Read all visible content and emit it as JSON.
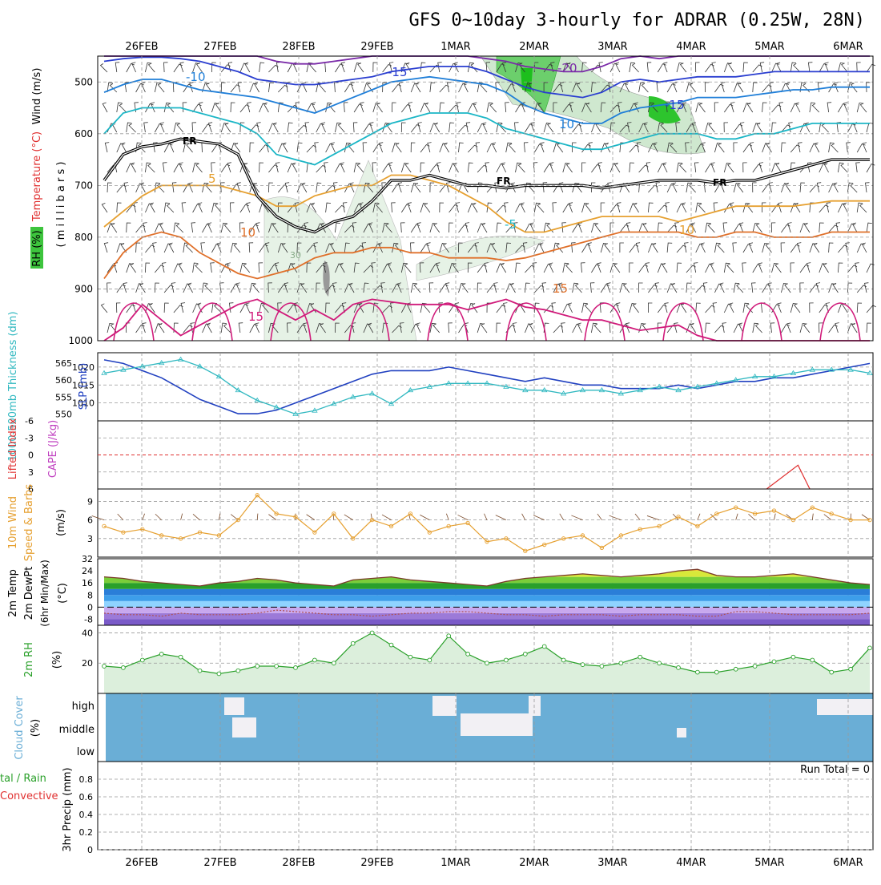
{
  "title": "GFS 0~10day 3-hourly for ADRAR (0.25W, 28N)",
  "dates": [
    "26FEB",
    "27FEB",
    "28FEB",
    "29FEB",
    "1MAR",
    "2MAR",
    "3MAR",
    "4MAR",
    "5MAR",
    "6MAR"
  ],
  "colors": {
    "temp": [
      "#d01a7a",
      "#e0702a",
      "#e6a030",
      "#22b88a",
      "#1bb6c6",
      "#1e7ed8",
      "#2a3ed0",
      "#7a2aa8"
    ],
    "slp": "#2040c0",
    "thickness": "#30b8c0",
    "wind10m": "#e6a030",
    "rh": "#2aa02a",
    "rh_fill": "#dcefdc",
    "cloud_bg": "#6aaed6",
    "cloud_gap": "#f2f0f4",
    "lifted": "#e03030",
    "cape": "#c040c0"
  },
  "chart_data": [
    {
      "type": "contour",
      "panel": "upper-air",
      "ylabel_parts": [
        "RH (%)",
        "Temperature (°C)",
        "Wind (m/s)"
      ],
      "ylabel_units": "( m i l l i b a r s )",
      "yticks": [
        500,
        600,
        700,
        800,
        900,
        1000
      ],
      "ylim": [
        450,
        1000
      ],
      "freezing_label": "FR",
      "freezing_level_mb": [
        690,
        640,
        625,
        620,
        610,
        615,
        620,
        640,
        720,
        760,
        780,
        790,
        770,
        760,
        730,
        690,
        690,
        680,
        690,
        700,
        700,
        705,
        700,
        700,
        700,
        700,
        705,
        700,
        695,
        690,
        690,
        690,
        695,
        690,
        690,
        680,
        670,
        660,
        650,
        650,
        650
      ],
      "rh_label": "30",
      "temperature_labels": [
        "-20",
        "-15",
        "-10",
        "-5",
        "5",
        "10",
        "15"
      ],
      "isotherms": [
        {
          "name": "15",
          "label": "15",
          "mb": [
            1000,
            975,
            930,
            960,
            990,
            970,
            950,
            930,
            920,
            940,
            960,
            940,
            960,
            930,
            920,
            925,
            930,
            930,
            930,
            940,
            930,
            920,
            935,
            940,
            950,
            960,
            960,
            970,
            980,
            975,
            970,
            990,
            1000,
            1000,
            1000,
            1000,
            1000,
            1000,
            1000,
            1000,
            1000
          ]
        },
        {
          "name": "10",
          "label": "10",
          "mb": [
            880,
            830,
            800,
            790,
            800,
            830,
            850,
            870,
            880,
            870,
            860,
            840,
            830,
            830,
            820,
            820,
            830,
            830,
            840,
            840,
            840,
            845,
            840,
            830,
            820,
            810,
            800,
            790,
            790,
            790,
            790,
            800,
            800,
            790,
            790,
            800,
            800,
            800,
            790,
            790,
            790
          ]
        },
        {
          "name": "5",
          "label": "5",
          "mb": [
            780,
            750,
            720,
            700,
            700,
            700,
            700,
            710,
            720,
            740,
            740,
            720,
            710,
            700,
            700,
            680,
            680,
            690,
            700,
            720,
            740,
            770,
            790,
            790,
            780,
            770,
            760,
            760,
            760,
            760,
            770,
            760,
            750,
            740,
            740,
            740,
            740,
            735,
            730,
            730,
            730
          ]
        },
        {
          "name": "0",
          "label": "",
          "mb": [
            690,
            640,
            625,
            620,
            610,
            615,
            620,
            640,
            720,
            760,
            780,
            790,
            770,
            760,
            730,
            690,
            690,
            680,
            690,
            700,
            700,
            705,
            700,
            700,
            700,
            700,
            705,
            700,
            695,
            690,
            690,
            690,
            695,
            690,
            690,
            680,
            670,
            660,
            650,
            650,
            650
          ]
        },
        {
          "name": "-5",
          "label": "-5",
          "mb": [
            600,
            560,
            550,
            550,
            550,
            560,
            570,
            580,
            600,
            640,
            650,
            660,
            640,
            620,
            600,
            580,
            570,
            560,
            560,
            560,
            570,
            590,
            600,
            610,
            620,
            630,
            630,
            620,
            610,
            600,
            600,
            600,
            610,
            610,
            600,
            600,
            590,
            580,
            580,
            580,
            580
          ]
        },
        {
          "name": "-10",
          "label": "-10",
          "mb": [
            520,
            505,
            495,
            495,
            505,
            515,
            520,
            525,
            530,
            540,
            550,
            560,
            545,
            530,
            515,
            500,
            495,
            490,
            495,
            500,
            505,
            520,
            545,
            560,
            570,
            580,
            580,
            560,
            550,
            545,
            540,
            530,
            530,
            530,
            525,
            520,
            515,
            515,
            510,
            510,
            510
          ]
        },
        {
          "name": "-15",
          "label": "-15",
          "mb": [
            460,
            455,
            452,
            452,
            455,
            460,
            470,
            480,
            495,
            500,
            505,
            505,
            500,
            495,
            490,
            480,
            475,
            470,
            470,
            470,
            480,
            495,
            510,
            520,
            525,
            530,
            520,
            500,
            495,
            500,
            495,
            490,
            490,
            490,
            485,
            480,
            480,
            480,
            480,
            480,
            480
          ]
        },
        {
          "name": "-20",
          "label": "-20",
          "mb": [
            450,
            450,
            450,
            450,
            450,
            450,
            450,
            450,
            450,
            460,
            465,
            465,
            460,
            455,
            450,
            450,
            450,
            450,
            450,
            450,
            455,
            460,
            470,
            475,
            480,
            480,
            470,
            455,
            450,
            455,
            450,
            450,
            450,
            450,
            450,
            450,
            450,
            450,
            450,
            450,
            450
          ]
        }
      ]
    },
    {
      "type": "line",
      "panel": "slp-thickness",
      "ylabel_left": "1000-500mb Thickness (dm)",
      "ylabel_right": "SLP (mb)",
      "yticks_thickness": [
        550,
        555,
        560,
        565
      ],
      "yticks_slp": [
        1010,
        1015,
        1020
      ],
      "series": [
        {
          "name": "SLP (mb)",
          "axis": "slp",
          "values": [
            1022,
            1021,
            1019,
            1017,
            1014,
            1011,
            1009,
            1007,
            1007,
            1008,
            1010,
            1012,
            1014,
            1016,
            1018,
            1019,
            1019,
            1019,
            1020,
            1019,
            1018,
            1017,
            1016,
            1017,
            1016,
            1015,
            1015,
            1014,
            1014,
            1014,
            1015,
            1014,
            1015,
            1016,
            1016,
            1017,
            1017,
            1018,
            1019,
            1020,
            1021
          ]
        },
        {
          "name": "1000-500mb Thickness (dm)",
          "axis": "thickness",
          "values": [
            562,
            563,
            564,
            565,
            566,
            564,
            561,
            557,
            554,
            552,
            550,
            551,
            553,
            555,
            556,
            553,
            557,
            558,
            559,
            559,
            559,
            558,
            557,
            557,
            556,
            557,
            557,
            556,
            557,
            558,
            557,
            558,
            559,
            560,
            561,
            561,
            562,
            563,
            563,
            563,
            562
          ]
        }
      ]
    },
    {
      "type": "line",
      "panel": "stability",
      "ylabel_left": "Lifted Index",
      "ylabel_right": "CAPE (J/kg)",
      "yticks": [
        "-6",
        "-3",
        "0",
        "3",
        "6"
      ],
      "ylim": [
        -6,
        6
      ],
      "zero_line": true,
      "series": [
        {
          "name": "Lifted Index",
          "x_days": [
            7.9,
            8.3,
            8.45
          ],
          "values": [
            6,
            1.8,
            6
          ]
        }
      ]
    },
    {
      "type": "line",
      "panel": "wind10m",
      "ylabel_left": "10m Wind",
      "ylabel_mid": "Speed & Barbs",
      "ylabel_right": "(m/s)",
      "yticks": [
        3,
        6,
        9
      ],
      "ylim": [
        0,
        11
      ],
      "series": [
        {
          "name": "10m Wind Speed",
          "values": [
            5,
            4,
            4.5,
            3.5,
            3,
            4,
            3.5,
            6,
            10,
            7,
            6.5,
            4,
            7,
            3,
            6,
            5,
            7,
            4,
            5,
            5.5,
            2.5,
            3,
            1,
            2,
            3,
            3.5,
            1.5,
            3.5,
            4.5,
            5,
            6.5,
            5,
            7,
            8,
            7,
            7.5,
            6,
            8,
            7,
            6,
            6
          ]
        }
      ]
    },
    {
      "type": "area",
      "panel": "temp2m",
      "ylabel_parts": [
        "2m Temp",
        "2m DewPt",
        "(6hr Min/Max)",
        "(°C)"
      ],
      "yticks": [
        -8,
        0,
        8,
        16,
        24,
        32
      ],
      "ylim": [
        -12,
        32
      ],
      "series": [
        {
          "name": "2m Temp",
          "values": [
            20,
            19,
            17,
            16,
            15,
            14,
            16,
            17,
            19,
            18,
            16,
            15,
            14,
            18,
            19,
            20,
            18,
            17,
            16,
            15,
            14,
            17,
            19,
            20,
            21,
            22,
            21,
            20,
            21,
            22,
            24,
            25,
            21,
            20,
            20,
            21,
            22,
            20,
            18,
            16,
            15
          ]
        },
        {
          "name": "2m DewPt",
          "values": [
            -4,
            -5,
            -5,
            -6,
            -4,
            -5,
            -5,
            -5,
            -4,
            -2,
            -3,
            -4,
            -5,
            -5,
            -6,
            -5,
            -4,
            -4,
            -3,
            -3,
            -4,
            -5,
            -5,
            -6,
            -5,
            -5,
            -5,
            -6,
            -5,
            -5,
            -5,
            -6,
            -6,
            -3,
            -3,
            -4,
            -5,
            -5,
            -5,
            -5,
            -4
          ]
        }
      ]
    },
    {
      "type": "area",
      "panel": "rh2m",
      "ylabel_parts": [
        "2m RH",
        "(%)"
      ],
      "yticks": [
        20,
        40
      ],
      "ylim": [
        0,
        45
      ],
      "series": [
        {
          "name": "2m RH",
          "values": [
            18,
            17,
            22,
            26,
            24,
            15,
            13,
            15,
            18,
            18,
            17,
            22,
            20,
            33,
            40,
            32,
            24,
            22,
            38,
            26,
            20,
            22,
            26,
            31,
            22,
            19,
            18,
            20,
            24,
            20,
            17,
            14,
            14,
            16,
            18,
            21,
            24,
            22,
            14,
            16,
            30
          ]
        }
      ]
    },
    {
      "type": "heatmap",
      "panel": "cloud",
      "ylabel_left": "Cloud Cover",
      "ylabel_right": "(%)",
      "yticks": [
        "high",
        "middle",
        "low"
      ],
      "run_total_label": "Run Total = 0"
    },
    {
      "type": "bar",
      "panel": "precip",
      "ylabel_left": "tal / Rain",
      "ylabel_left2": "Convective",
      "ylabel_right": "3hr Precip (mm)",
      "yticks": [
        0,
        0.2,
        0.4,
        0.6,
        0.8
      ],
      "ylim": [
        0,
        1
      ],
      "values": []
    }
  ]
}
